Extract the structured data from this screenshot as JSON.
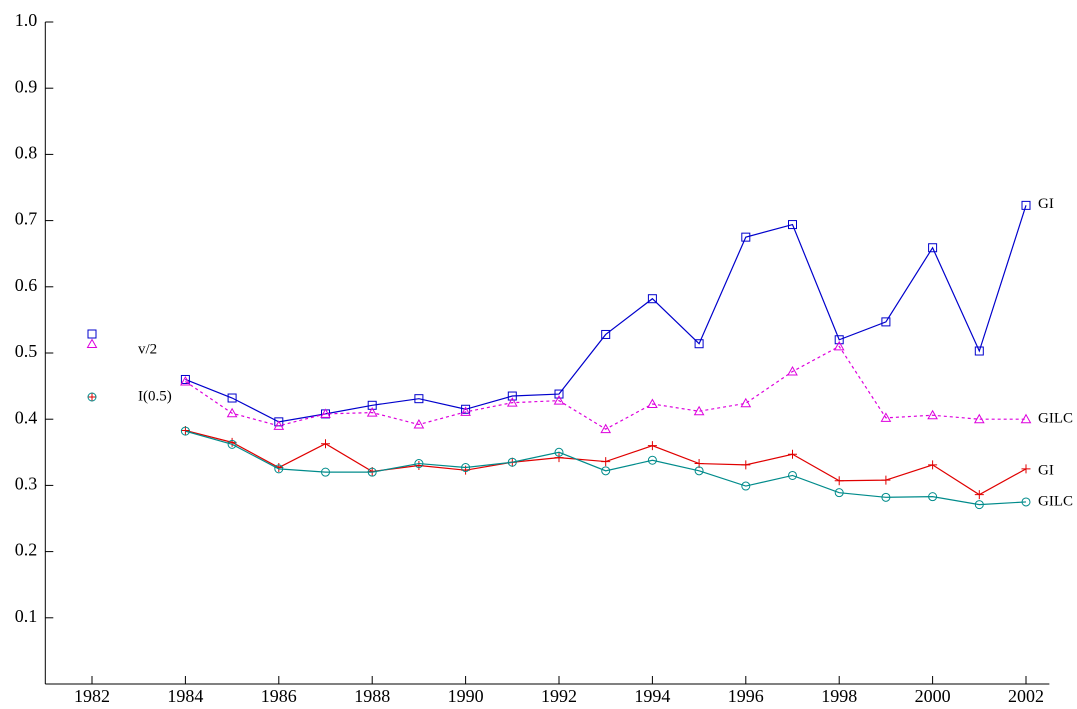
{
  "chart_data": {
    "type": "line",
    "x": [
      1984,
      1985,
      1986,
      1987,
      1988,
      1989,
      1990,
      1991,
      1992,
      1993,
      1994,
      1995,
      1996,
      1997,
      1998,
      1999,
      2000,
      2001,
      2002
    ],
    "series": [
      {
        "name": "GI",
        "color": "#0000cc",
        "marker": "square",
        "dashed": false,
        "values": [
          0.46,
          0.432,
          0.396,
          0.408,
          0.421,
          0.431,
          0.415,
          0.435,
          0.438,
          0.528,
          0.582,
          0.514,
          0.675,
          0.694,
          0.52,
          0.547,
          0.659,
          0.503,
          0.723
        ]
      },
      {
        "name": "GILC",
        "color": "#dd00dd",
        "marker": "triangle",
        "dashed": true,
        "values": [
          0.457,
          0.409,
          0.39,
          0.408,
          0.41,
          0.392,
          0.411,
          0.425,
          0.428,
          0.385,
          0.423,
          0.412,
          0.424,
          0.472,
          0.51,
          0.402,
          0.406,
          0.4,
          0.4
        ]
      },
      {
        "name": "GI",
        "color": "#e00000",
        "marker": "plus",
        "dashed": false,
        "values": [
          0.383,
          0.365,
          0.327,
          0.363,
          0.321,
          0.33,
          0.323,
          0.335,
          0.342,
          0.336,
          0.36,
          0.333,
          0.331,
          0.347,
          0.307,
          0.308,
          0.331,
          0.286,
          0.325
        ]
      },
      {
        "name": "GILC",
        "color": "#008b8b",
        "marker": "circle",
        "dashed": false,
        "values": [
          0.382,
          0.362,
          0.325,
          0.32,
          0.32,
          0.333,
          0.327,
          0.335,
          0.35,
          0.322,
          0.338,
          0.322,
          0.299,
          0.315,
          0.289,
          0.282,
          0.283,
          0.271,
          0.275
        ]
      }
    ],
    "legend": [
      {
        "label": "v/2",
        "series": [
          0,
          1
        ]
      },
      {
        "label": "I(0.5)",
        "series": [
          2,
          3
        ]
      }
    ],
    "xlim": [
      1981,
      2002.5
    ],
    "xticks": [
      1982,
      1984,
      1986,
      1988,
      1990,
      1992,
      1994,
      1996,
      1998,
      2000,
      2002
    ],
    "ylim": [
      0,
      1
    ],
    "yticks": [
      0.1,
      0.2,
      0.3,
      0.4,
      0.5,
      0.6,
      0.7,
      0.8,
      0.9,
      {
        "value": 1,
        "label": "1.0"
      }
    ]
  }
}
